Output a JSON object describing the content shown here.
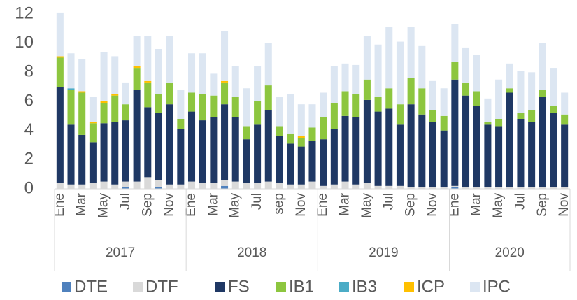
{
  "chart_data": {
    "type": "stacked_bar",
    "groups": [
      {
        "name": "2017",
        "categories": [
          "Ene",
          null,
          "Mar",
          null,
          "May",
          null,
          "Jul",
          null,
          "Sep",
          null,
          "Nov",
          null
        ]
      },
      {
        "name": "2018",
        "categories": [
          "Ene",
          null,
          "Mar",
          null,
          "May",
          null,
          "Jul",
          null,
          "sep",
          null,
          "Nov",
          null
        ]
      },
      {
        "name": "2019",
        "categories": [
          "Ene",
          null,
          "Mar",
          null,
          "May",
          null,
          "Jul",
          null,
          "Sep",
          null,
          "Nov",
          null
        ]
      },
      {
        "name": "2020",
        "categories": [
          "Ene",
          null,
          "Mar",
          null,
          "May",
          null,
          "Jul",
          null,
          "Sep",
          null,
          "Nov"
        ]
      }
    ],
    "series": [
      {
        "name": "DTE",
        "color": "#4f81bd",
        "values": [
          0,
          0,
          0,
          0,
          0,
          0,
          0.1,
          0,
          0,
          0.1,
          0,
          0,
          0,
          0,
          0,
          0.2,
          0,
          0,
          0,
          0,
          0,
          0,
          0,
          0,
          0,
          0,
          0,
          0,
          0,
          0,
          0,
          0,
          0,
          0,
          0,
          0,
          0.1,
          0,
          0,
          0,
          0,
          0,
          0,
          0,
          0,
          0,
          0
        ]
      },
      {
        "name": "DTF",
        "color": "#d9d9d9",
        "values": [
          0.4,
          0.3,
          0.3,
          0.4,
          0.5,
          0.3,
          0.4,
          0.5,
          0.8,
          0.5,
          0.3,
          0.3,
          0.5,
          0.4,
          0.4,
          0.4,
          0.5,
          0.4,
          0.4,
          0.5,
          0.4,
          0.3,
          0.3,
          0.5,
          0.2,
          0.3,
          0.5,
          0.3,
          0.4,
          0.2,
          0.2,
          0.2,
          0.1,
          0.1,
          0.1,
          0.1,
          0.1,
          0.1,
          0.1,
          0.1,
          0.1,
          0.1,
          0.1,
          0.1,
          0.1,
          0.1,
          0.1
        ]
      },
      {
        "name": "FS",
        "color": "#1f3864",
        "values": [
          6.6,
          4.1,
          3.4,
          2.8,
          4.0,
          4.3,
          4.2,
          6.3,
          4.8,
          4.6,
          5.5,
          3.8,
          4.8,
          4.3,
          4.5,
          5.2,
          4.4,
          3.0,
          4.0,
          4.9,
          3.2,
          2.8,
          2.6,
          2.8,
          3.2,
          3.8,
          4.5,
          4.6,
          5.7,
          5.1,
          5.3,
          4.2,
          5.7,
          5.0,
          4.5,
          3.9,
          7.3,
          6.3,
          5.6,
          4.3,
          4.2,
          6.5,
          4.7,
          4.5,
          6.2,
          5.1,
          4.3
        ]
      },
      {
        "name": "IB1",
        "color": "#8dc63f",
        "values": [
          2.0,
          2.4,
          2.9,
          1.3,
          1.4,
          1.8,
          1.1,
          1.5,
          1.7,
          1.3,
          1.5,
          0.7,
          1.3,
          1.8,
          1.5,
          1.5,
          1.4,
          0.9,
          1.6,
          1.7,
          0.7,
          0.7,
          0.6,
          0.9,
          1.5,
          1.8,
          1.7,
          1.6,
          1.4,
          1.0,
          1.4,
          1.4,
          1.8,
          1.8,
          0.8,
          1.0,
          1.2,
          0.9,
          1.0,
          0.2,
          0.5,
          0.3,
          0.4,
          0.8,
          0.5,
          0.5,
          0.7
        ]
      },
      {
        "name": "IB3",
        "color": "#4bacc6",
        "values": [
          0,
          0.1,
          0,
          0,
          0,
          0,
          0,
          0,
          0,
          0,
          0,
          0,
          0,
          0,
          0,
          0,
          0,
          0,
          0,
          0,
          0,
          0,
          0,
          0,
          0,
          0,
          0,
          0,
          0,
          0,
          0,
          0,
          0,
          0,
          0,
          0,
          0,
          0,
          0,
          0,
          0,
          0,
          0,
          0,
          0,
          0,
          0
        ]
      },
      {
        "name": "ICP",
        "color": "#ffc000",
        "values": [
          0.1,
          0,
          0.1,
          0.1,
          0.1,
          0.1,
          0,
          0.1,
          0.1,
          0,
          0,
          0,
          0,
          0,
          0,
          0.1,
          0,
          0,
          0,
          0,
          0,
          0,
          0.1,
          0,
          0,
          0,
          0,
          0,
          0,
          0,
          0,
          0,
          0,
          0,
          0,
          0,
          0,
          0,
          0,
          0,
          0,
          0,
          0,
          0,
          0,
          0,
          0
        ]
      },
      {
        "name": "IPC",
        "color": "#dce6f2",
        "values": [
          3.0,
          2.4,
          2.2,
          1.7,
          3.4,
          2.6,
          1.5,
          2.1,
          3.1,
          3.1,
          3.2,
          2.0,
          2.7,
          2.8,
          1.5,
          3.4,
          2.1,
          2.6,
          2.4,
          2.9,
          2.0,
          2.7,
          2.2,
          1.6,
          1.7,
          2.5,
          1.9,
          2.0,
          3.0,
          3.6,
          4.2,
          4.3,
          3.5,
          2.9,
          2.0,
          1.9,
          2.6,
          2.4,
          2.5,
          1.6,
          2.7,
          1.7,
          2.9,
          2.6,
          3.2,
          2.6,
          1.5
        ]
      }
    ],
    "ylim": [
      0,
      12
    ],
    "yticks": [
      0,
      2,
      4,
      6,
      8,
      10,
      12
    ],
    "grid": false,
    "legend": "bottom"
  }
}
